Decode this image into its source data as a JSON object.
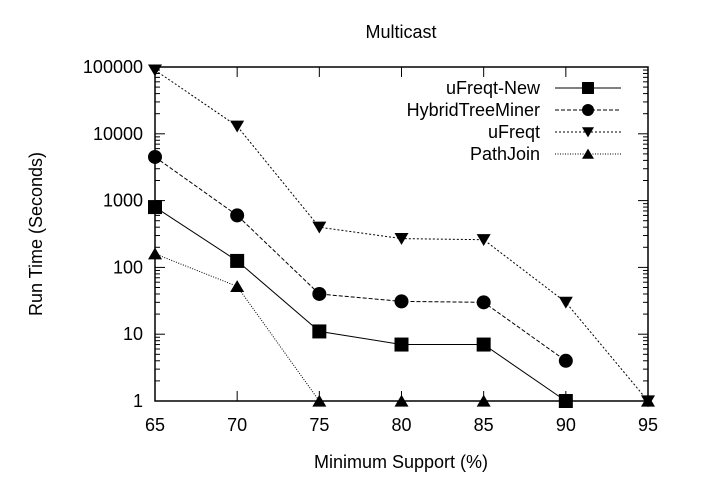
{
  "chart_data": {
    "type": "line",
    "title": "Multicast",
    "xlabel": "Minimum Support (%)",
    "ylabel": "Run Time (Seconds)",
    "x": [
      65,
      70,
      75,
      80,
      85,
      90,
      95
    ],
    "xlim": [
      65,
      95
    ],
    "ylim": [
      1,
      100000
    ],
    "yscale": "log",
    "xticks": [
      "65",
      "70",
      "75",
      "80",
      "85",
      "90",
      "95"
    ],
    "yticks": [
      "1",
      "10",
      "100",
      "1000",
      "10000",
      "100000"
    ],
    "yticks_values": [
      1,
      10,
      100,
      1000,
      10000,
      100000
    ],
    "legend_position": "top-right",
    "grid": false,
    "series": [
      {
        "name": "uFreqt-New",
        "marker": "square",
        "dash": "solid",
        "values": [
          800,
          125,
          11,
          7,
          7,
          1,
          null
        ]
      },
      {
        "name": "HybridTreeMiner",
        "marker": "circle",
        "dash": "dashed",
        "values": [
          4500,
          600,
          40,
          31,
          30,
          4,
          null
        ]
      },
      {
        "name": "uFreqt",
        "marker": "triangle-down",
        "dash": "dotted",
        "values": [
          90000,
          13000,
          400,
          270,
          260,
          30,
          1
        ]
      },
      {
        "name": "PathJoin",
        "marker": "triangle-up",
        "dash": "fine-dotted",
        "values": [
          160,
          52,
          1,
          1,
          1,
          null,
          1
        ]
      }
    ]
  }
}
